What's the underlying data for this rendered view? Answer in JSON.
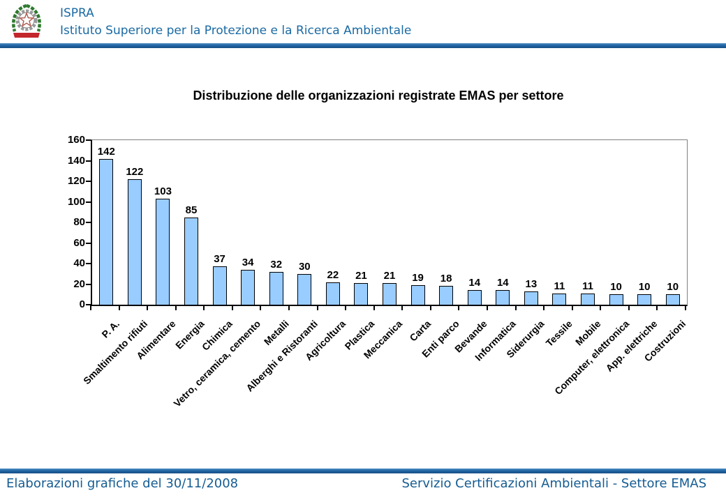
{
  "header": {
    "org_abbr": "ISPRA",
    "org_name": "Istituto Superiore per la Protezione e la Ricerca Ambientale",
    "logo": "emblem-of-italy"
  },
  "chart_data": {
    "type": "bar",
    "title": "Distribuzione delle organizzazioni registrate EMAS per settore",
    "categories": [
      "P. A.",
      "Smaltimento rifiuti",
      "Alimentare",
      "Energia",
      "Chimica",
      "Vetro, ceramica, cemento",
      "Metalli",
      "Alberghi e Ristoranti",
      "Agricoltura",
      "Plastica",
      "Meccanica",
      "Carta",
      "Enti parco",
      "Bevande",
      "Informatica",
      "Siderurgia",
      "Tessile",
      "Mobile",
      "Computer, elettronica",
      "App. elettriche",
      "Costruzioni"
    ],
    "values": [
      142,
      122,
      103,
      85,
      37,
      34,
      32,
      30,
      22,
      21,
      21,
      19,
      18,
      14,
      14,
      13,
      11,
      11,
      10,
      10,
      10
    ],
    "xlabel": "",
    "ylabel": "",
    "ylim": [
      0,
      160
    ],
    "yticks": [
      0,
      20,
      40,
      60,
      80,
      100,
      120,
      140,
      160
    ],
    "grid": "top-gridline-only",
    "legend": "none",
    "data_labels": true
  },
  "footer": {
    "left_text": "Elaborazioni grafiche del 30/11/2008",
    "right_text": "Servizio Certificazioni Ambientali - Settore EMAS"
  },
  "colors": {
    "header_text": "#1A6AA3",
    "rule_blue": "#1C5F9E",
    "footer_text": "#155C92",
    "bar_fill": "#99CCFF",
    "bar_border": "#000000",
    "plot_border_gray": "#808080",
    "axis_black": "#000000"
  }
}
